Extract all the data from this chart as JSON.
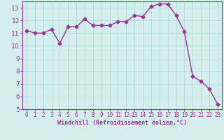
{
  "x": [
    0,
    1,
    2,
    3,
    4,
    5,
    6,
    7,
    8,
    9,
    10,
    11,
    12,
    13,
    14,
    15,
    16,
    17,
    18,
    19,
    20,
    21,
    22,
    23
  ],
  "y": [
    11.2,
    11.0,
    11.0,
    11.3,
    10.2,
    11.5,
    11.5,
    12.1,
    11.6,
    11.6,
    11.6,
    11.9,
    11.9,
    12.4,
    12.3,
    13.1,
    13.3,
    13.3,
    12.4,
    11.1,
    7.6,
    7.2,
    6.6,
    5.4
  ],
  "line_color": "#993399",
  "marker": "D",
  "marker_size": 2.5,
  "linewidth": 1.0,
  "bg_color": "#d4eeee",
  "grid_color": "#b0d8d8",
  "xlabel": "Windchill (Refroidissement éolien,°C)",
  "xlabel_color": "#993399",
  "xtick_labels": [
    "0",
    "1",
    "2",
    "3",
    "4",
    "5",
    "6",
    "7",
    "8",
    "9",
    "10",
    "11",
    "12",
    "13",
    "14",
    "15",
    "16",
    "17",
    "18",
    "19",
    "20",
    "21",
    "22",
    "23"
  ],
  "ylim": [
    5,
    13.5
  ],
  "yticks": [
    5,
    6,
    7,
    8,
    9,
    10,
    11,
    12,
    13
  ],
  "tick_color": "#993399",
  "spine_color": "#993399",
  "label_fontsize": 5.5,
  "xlabel_fontsize": 6.0,
  "ytick_fontsize": 6.5
}
